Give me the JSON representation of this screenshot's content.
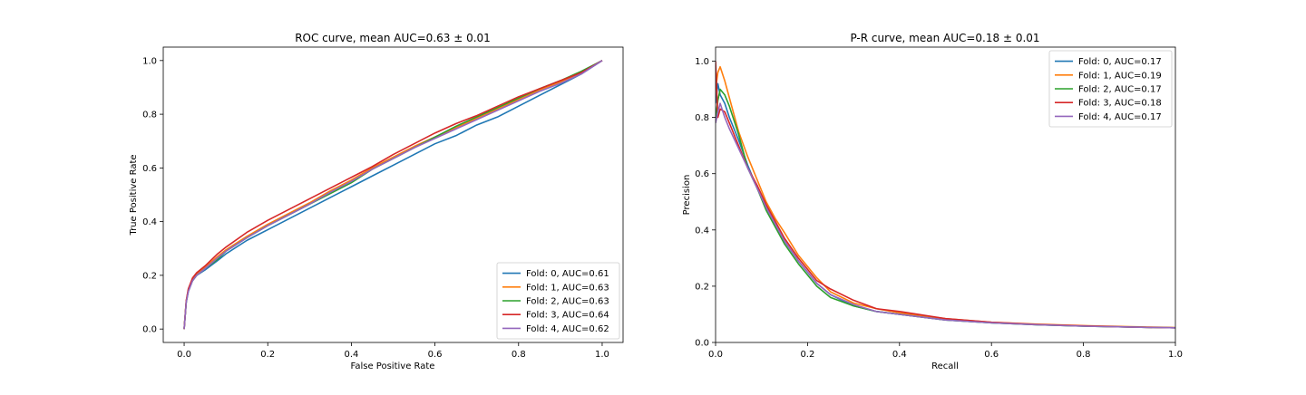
{
  "chart_data": [
    {
      "type": "line",
      "title": "ROC curve, mean AUC=0.63 ± 0.01",
      "xlabel": "False Positive Rate",
      "ylabel": "True Positive Rate",
      "xlim": [
        -0.05,
        1.05
      ],
      "ylim": [
        -0.05,
        1.05
      ],
      "xticks": [
        "0.0",
        "0.2",
        "0.4",
        "0.6",
        "0.8",
        "1.0"
      ],
      "yticks": [
        "0.0",
        "0.2",
        "0.4",
        "0.6",
        "0.8",
        "1.0"
      ],
      "legend_position": "lower right",
      "grid": false,
      "series": [
        {
          "name": "Fold: 0, AUC=0.61",
          "color": "#1f77b4",
          "x": [
            0,
            0.005,
            0.01,
            0.02,
            0.03,
            0.05,
            0.08,
            0.1,
            0.15,
            0.2,
            0.25,
            0.3,
            0.35,
            0.4,
            0.45,
            0.5,
            0.55,
            0.6,
            0.65,
            0.7,
            0.75,
            0.8,
            0.85,
            0.9,
            0.95,
            1.0
          ],
          "y": [
            0,
            0.1,
            0.14,
            0.18,
            0.2,
            0.22,
            0.255,
            0.28,
            0.33,
            0.37,
            0.41,
            0.45,
            0.49,
            0.53,
            0.57,
            0.61,
            0.65,
            0.69,
            0.72,
            0.76,
            0.79,
            0.83,
            0.87,
            0.91,
            0.95,
            1.0
          ]
        },
        {
          "name": "Fold: 1, AUC=0.63",
          "color": "#ff7f0e",
          "x": [
            0,
            0.005,
            0.01,
            0.02,
            0.03,
            0.05,
            0.08,
            0.1,
            0.15,
            0.2,
            0.25,
            0.3,
            0.35,
            0.4,
            0.45,
            0.5,
            0.55,
            0.6,
            0.65,
            0.7,
            0.75,
            0.8,
            0.85,
            0.9,
            0.95,
            1.0
          ],
          "y": [
            0,
            0.105,
            0.145,
            0.185,
            0.205,
            0.23,
            0.27,
            0.295,
            0.345,
            0.39,
            0.43,
            0.47,
            0.515,
            0.555,
            0.6,
            0.64,
            0.68,
            0.715,
            0.75,
            0.785,
            0.82,
            0.855,
            0.89,
            0.92,
            0.955,
            1.0
          ]
        },
        {
          "name": "Fold: 2, AUC=0.63",
          "color": "#2ca02c",
          "x": [
            0,
            0.005,
            0.01,
            0.02,
            0.03,
            0.05,
            0.08,
            0.1,
            0.15,
            0.2,
            0.25,
            0.3,
            0.35,
            0.4,
            0.45,
            0.5,
            0.55,
            0.6,
            0.65,
            0.7,
            0.75,
            0.8,
            0.85,
            0.9,
            0.95,
            1.0
          ],
          "y": [
            0,
            0.1,
            0.145,
            0.18,
            0.2,
            0.225,
            0.26,
            0.29,
            0.34,
            0.385,
            0.425,
            0.465,
            0.505,
            0.545,
            0.595,
            0.635,
            0.675,
            0.715,
            0.755,
            0.79,
            0.825,
            0.86,
            0.895,
            0.925,
            0.96,
            1.0
          ]
        },
        {
          "name": "Fold: 3, AUC=0.64",
          "color": "#d62728",
          "x": [
            0,
            0.005,
            0.01,
            0.02,
            0.03,
            0.05,
            0.08,
            0.1,
            0.15,
            0.2,
            0.25,
            0.3,
            0.35,
            0.4,
            0.45,
            0.5,
            0.55,
            0.6,
            0.65,
            0.7,
            0.75,
            0.8,
            0.85,
            0.9,
            0.95,
            1.0
          ],
          "y": [
            0,
            0.105,
            0.15,
            0.19,
            0.21,
            0.235,
            0.28,
            0.305,
            0.36,
            0.405,
            0.445,
            0.485,
            0.525,
            0.565,
            0.605,
            0.65,
            0.69,
            0.73,
            0.765,
            0.795,
            0.83,
            0.865,
            0.895,
            0.925,
            0.955,
            1.0
          ]
        },
        {
          "name": "Fold: 4, AUC=0.62",
          "color": "#9467bd",
          "x": [
            0,
            0.005,
            0.01,
            0.02,
            0.03,
            0.05,
            0.08,
            0.1,
            0.15,
            0.2,
            0.25,
            0.3,
            0.35,
            0.4,
            0.45,
            0.5,
            0.55,
            0.6,
            0.65,
            0.7,
            0.75,
            0.8,
            0.85,
            0.9,
            0.95,
            1.0
          ],
          "y": [
            0,
            0.1,
            0.14,
            0.18,
            0.2,
            0.225,
            0.265,
            0.29,
            0.34,
            0.385,
            0.425,
            0.465,
            0.51,
            0.55,
            0.595,
            0.635,
            0.675,
            0.71,
            0.745,
            0.78,
            0.815,
            0.85,
            0.885,
            0.915,
            0.95,
            1.0
          ]
        }
      ]
    },
    {
      "type": "line",
      "title": "P-R curve, mean AUC=0.18 ± 0.01",
      "xlabel": "Recall",
      "ylabel": "Precision",
      "xlim": [
        0.0,
        1.0
      ],
      "ylim": [
        0.0,
        1.05
      ],
      "xticks": [
        "0.0",
        "0.2",
        "0.4",
        "0.6",
        "0.8",
        "1.0"
      ],
      "yticks": [
        "0.0",
        "0.2",
        "0.4",
        "0.6",
        "0.8",
        "1.0"
      ],
      "legend_position": "upper right",
      "grid": false,
      "series": [
        {
          "name": "Fold: 0, AUC=0.17",
          "color": "#1f77b4",
          "x": [
            0,
            0.005,
            0.01,
            0.02,
            0.03,
            0.05,
            0.07,
            0.09,
            0.11,
            0.13,
            0.15,
            0.18,
            0.2,
            0.22,
            0.25,
            0.3,
            0.35,
            0.4,
            0.5,
            0.6,
            0.7,
            0.8,
            0.9,
            1.0
          ],
          "y": [
            0.85,
            0.92,
            0.88,
            0.85,
            0.8,
            0.72,
            0.63,
            0.55,
            0.48,
            0.42,
            0.36,
            0.29,
            0.25,
            0.21,
            0.17,
            0.13,
            0.11,
            0.1,
            0.08,
            0.07,
            0.063,
            0.058,
            0.055,
            0.052
          ]
        },
        {
          "name": "Fold: 1, AUC=0.19",
          "color": "#ff7f0e",
          "x": [
            0,
            0.005,
            0.01,
            0.02,
            0.03,
            0.05,
            0.07,
            0.09,
            0.11,
            0.13,
            0.15,
            0.18,
            0.2,
            0.22,
            0.25,
            0.3,
            0.35,
            0.4,
            0.5,
            0.6,
            0.7,
            0.8,
            0.9,
            1.0
          ],
          "y": [
            0.9,
            0.96,
            0.98,
            0.93,
            0.87,
            0.75,
            0.66,
            0.58,
            0.5,
            0.44,
            0.39,
            0.31,
            0.27,
            0.23,
            0.18,
            0.14,
            0.12,
            0.105,
            0.085,
            0.072,
            0.065,
            0.06,
            0.056,
            0.053
          ]
        },
        {
          "name": "Fold: 2, AUC=0.17",
          "color": "#2ca02c",
          "x": [
            0,
            0.005,
            0.01,
            0.02,
            0.03,
            0.05,
            0.07,
            0.09,
            0.11,
            0.13,
            0.15,
            0.18,
            0.2,
            0.22,
            0.25,
            0.3,
            0.35,
            0.4,
            0.5,
            0.6,
            0.7,
            0.8,
            0.9,
            1.0
          ],
          "y": [
            0.8,
            0.86,
            0.9,
            0.88,
            0.84,
            0.74,
            0.62,
            0.55,
            0.47,
            0.41,
            0.35,
            0.28,
            0.24,
            0.2,
            0.16,
            0.13,
            0.11,
            0.1,
            0.08,
            0.07,
            0.063,
            0.058,
            0.055,
            0.052
          ]
        },
        {
          "name": "Fold: 3, AUC=0.18",
          "color": "#d62728",
          "x": [
            0,
            0.005,
            0.01,
            0.02,
            0.03,
            0.05,
            0.07,
            0.09,
            0.11,
            0.13,
            0.15,
            0.18,
            0.2,
            0.22,
            0.25,
            0.3,
            0.35,
            0.4,
            0.5,
            0.6,
            0.7,
            0.8,
            0.9,
            1.0
          ],
          "y": [
            1.0,
            0.8,
            0.83,
            0.82,
            0.78,
            0.7,
            0.62,
            0.56,
            0.49,
            0.43,
            0.37,
            0.3,
            0.26,
            0.22,
            0.19,
            0.15,
            0.12,
            0.11,
            0.085,
            0.072,
            0.064,
            0.059,
            0.055,
            0.052
          ]
        },
        {
          "name": "Fold: 4, AUC=0.17",
          "color": "#9467bd",
          "x": [
            0,
            0.005,
            0.01,
            0.02,
            0.03,
            0.05,
            0.07,
            0.09,
            0.11,
            0.13,
            0.15,
            0.18,
            0.2,
            0.22,
            0.25,
            0.3,
            0.35,
            0.4,
            0.5,
            0.6,
            0.7,
            0.8,
            0.9,
            1.0
          ],
          "y": [
            0.78,
            0.82,
            0.85,
            0.8,
            0.76,
            0.69,
            0.62,
            0.55,
            0.48,
            0.42,
            0.36,
            0.29,
            0.25,
            0.21,
            0.17,
            0.135,
            0.11,
            0.1,
            0.08,
            0.07,
            0.063,
            0.058,
            0.055,
            0.052
          ]
        }
      ]
    }
  ]
}
